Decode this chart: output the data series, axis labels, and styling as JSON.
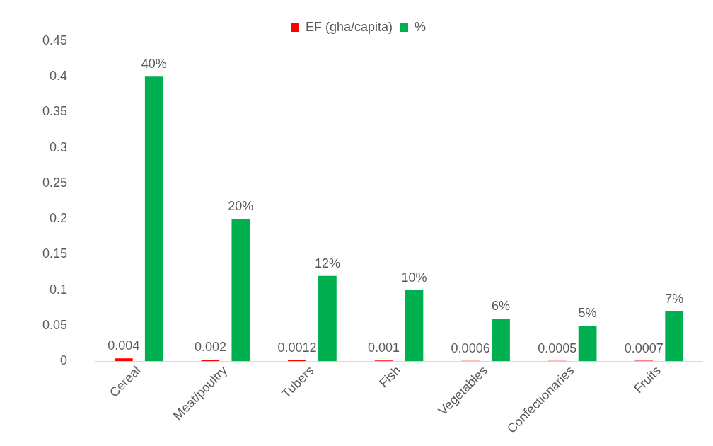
{
  "chart_data": {
    "type": "bar",
    "categories": [
      "Cereal",
      "Meat/poultry",
      "Tubers",
      "Fish",
      "Vegetables",
      "Confectionaries",
      "Fruits"
    ],
    "series": [
      {
        "name": "EF (gha/capita)",
        "color": "#ff0000",
        "values": [
          0.004,
          0.002,
          0.0012,
          0.001,
          0.0006,
          0.0005,
          0.0007
        ],
        "value_labels": [
          "0.004",
          "0.002",
          "0.0012",
          "0.001",
          "0.0006",
          "0.0005",
          "0.0007"
        ]
      },
      {
        "name": "%",
        "color": "#00b050",
        "values": [
          0.4,
          0.2,
          0.12,
          0.1,
          0.06,
          0.05,
          0.07
        ],
        "value_labels": [
          "40%",
          "20%",
          "12%",
          "10%",
          "6%",
          "5%",
          "7%"
        ]
      }
    ],
    "ylim": [
      0,
      0.45
    ],
    "yticks": [
      0,
      0.05,
      0.1,
      0.15,
      0.2,
      0.25,
      0.3,
      0.35,
      0.4,
      0.45
    ],
    "grid": false,
    "legend": "top"
  }
}
